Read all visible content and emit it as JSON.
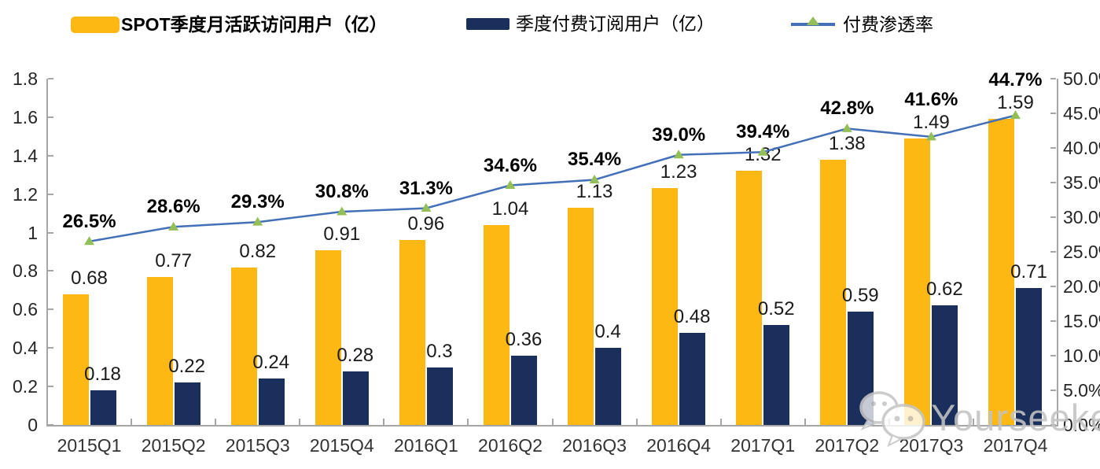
{
  "chart_data": {
    "type": "combo-bar-line",
    "categories": [
      "2015Q1",
      "2015Q2",
      "2015Q3",
      "2015Q4",
      "2016Q1",
      "2016Q2",
      "2016Q3",
      "2016Q4",
      "2017Q1",
      "2017Q2",
      "2017Q3",
      "2017Q4"
    ],
    "series": [
      {
        "name": "SPOT季度月活跃访问用户（亿）",
        "type": "bar",
        "axis": "left",
        "color": "#FDB813",
        "values": [
          0.68,
          0.77,
          0.82,
          0.91,
          0.96,
          1.04,
          1.13,
          1.23,
          1.32,
          1.38,
          1.49,
          1.59
        ],
        "labels": [
          "0.68",
          "0.77",
          "0.82",
          "0.91",
          "0.96",
          "1.04",
          "1.13",
          "1.23",
          "1.32",
          "1.38",
          "1.49",
          "1.59"
        ]
      },
      {
        "name": "季度付费订阅用户（亿）",
        "type": "bar",
        "axis": "left",
        "color": "#1A2F5B",
        "values": [
          0.18,
          0.22,
          0.24,
          0.28,
          0.3,
          0.36,
          0.4,
          0.48,
          0.52,
          0.59,
          0.62,
          0.71
        ],
        "labels": [
          "0.18",
          "0.22",
          "0.24",
          "0.28",
          "0.3",
          "0.36",
          "0.4",
          "0.48",
          "0.52",
          "0.59",
          "0.62",
          "0.71"
        ]
      },
      {
        "name": "付费渗透率",
        "type": "line",
        "axis": "right",
        "color": "#4470B9",
        "marker": "triangle",
        "marker_color": "#94BE57",
        "values": [
          26.5,
          28.6,
          29.3,
          30.8,
          31.3,
          34.6,
          35.4,
          39.0,
          39.4,
          42.8,
          41.6,
          44.7
        ],
        "labels": [
          "26.5%",
          "28.6%",
          "29.3%",
          "30.8%",
          "31.3%",
          "34.6%",
          "35.4%",
          "39.0%",
          "39.4%",
          "42.8%",
          "41.6%",
          "44.7%"
        ]
      }
    ],
    "left_axis": {
      "min": 0,
      "max": 1.8,
      "tick_labels": [
        "1.8",
        "1.6",
        "1.4",
        "1.2",
        "1",
        "0.8",
        "0.6",
        "0.4",
        "0.2",
        "0"
      ]
    },
    "right_axis": {
      "min": 0,
      "max": 50,
      "tick_labels": [
        "50.0%",
        "45.0%",
        "40.0%",
        "35.0%",
        "30.0%",
        "25.0%",
        "20.0%",
        "15.0%",
        "10.0%",
        "5.0%",
        "0.0%"
      ]
    },
    "grid": false,
    "legend_position": "top"
  },
  "watermark": {
    "text": "Yourseeker"
  }
}
